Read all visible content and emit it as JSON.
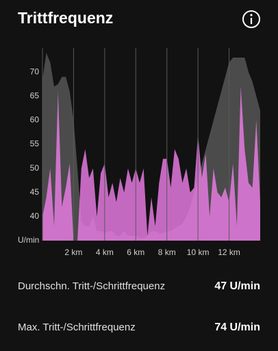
{
  "header": {
    "title": "Trittfrequenz"
  },
  "chart_data": {
    "type": "area",
    "x": [
      0,
      0.25,
      0.5,
      0.75,
      1,
      1.25,
      1.5,
      1.75,
      2,
      2.25,
      2.5,
      2.75,
      3,
      3.25,
      3.5,
      3.75,
      4,
      4.25,
      4.5,
      4.75,
      5,
      5.25,
      5.5,
      5.75,
      6,
      6.25,
      6.5,
      6.75,
      7,
      7.25,
      7.5,
      7.75,
      8,
      8.25,
      8.5,
      8.75,
      9,
      9.25,
      9.5,
      9.75,
      10,
      10.25,
      10.5,
      10.75,
      11,
      11.25,
      11.5,
      11.75,
      12,
      12.25,
      12.5,
      12.75,
      13,
      13.25,
      13.5,
      13.75,
      14
    ],
    "series": [
      {
        "color": "#4b4b4b",
        "values": [
          68.5,
          74,
          72,
          67,
          67.5,
          69,
          69,
          66,
          60,
          50,
          39,
          38,
          38,
          40,
          37,
          37,
          36.5,
          37,
          37,
          36,
          36,
          37,
          36,
          36,
          36,
          35.5,
          35.5,
          36,
          37,
          37,
          36.5,
          36.5,
          37,
          37,
          37.5,
          38,
          38.5,
          40,
          42,
          45,
          48,
          51,
          54,
          57,
          60,
          63,
          66,
          69,
          72,
          73,
          73,
          73,
          73,
          70,
          68,
          65,
          62
        ]
      },
      {
        "color": "#ec7de6",
        "values": [
          40,
          44,
          50,
          38,
          66,
          42,
          46,
          51,
          35,
          35,
          50,
          54,
          48,
          50,
          40,
          49,
          51,
          44,
          47,
          43,
          48,
          45,
          50,
          47,
          50,
          47,
          50,
          36,
          44,
          38,
          47,
          52,
          52,
          46,
          54,
          52,
          47,
          50,
          45,
          46,
          57,
          48,
          53,
          40,
          50,
          45,
          44,
          46,
          43,
          51,
          38,
          67,
          54,
          47,
          46,
          60,
          43
        ]
      }
    ],
    "xlim": [
      0,
      14
    ],
    "ylim": [
      35,
      75
    ],
    "xticks": [
      {
        "value": 2,
        "label": "2 km"
      },
      {
        "value": 4,
        "label": "4 km"
      },
      {
        "value": 6,
        "label": "6 km"
      },
      {
        "value": 8,
        "label": "8 km"
      },
      {
        "value": 10,
        "label": "10 km"
      },
      {
        "value": 12,
        "label": "12 km"
      }
    ],
    "yticks": [
      {
        "value": 35,
        "label": "U/min"
      },
      40,
      45,
      50,
      55,
      60,
      65,
      70
    ],
    "xgrid": true
  },
  "stats": [
    {
      "label": "Durchschn. Tritt-/Schrittfrequenz",
      "value": "47 U/min"
    },
    {
      "label": "Max. Tritt-/Schrittfrequenz",
      "value": "74 U/min"
    }
  ]
}
